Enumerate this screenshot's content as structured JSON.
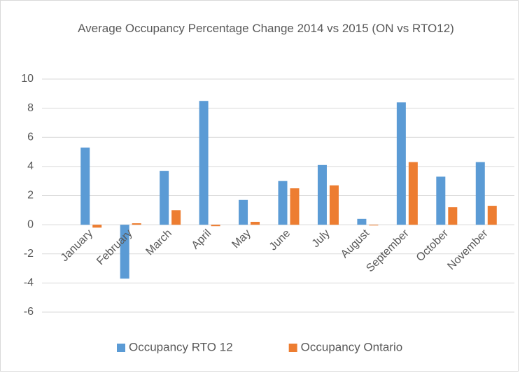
{
  "chart_data": {
    "type": "bar",
    "title": "Average Occupancy Percentage Change 2014 vs 2015 (ON vs RTO12)",
    "categories": [
      "January",
      "February",
      "March",
      "April",
      "May",
      "June",
      "July",
      "August",
      "September",
      "October",
      "November"
    ],
    "series": [
      {
        "name": "Occupancy RTO 12",
        "color": "#5b9bd5",
        "values": [
          5.3,
          -3.7,
          3.7,
          8.5,
          1.7,
          3.0,
          4.1,
          0.4,
          8.4,
          3.3,
          4.3
        ]
      },
      {
        "name": "Occupancy Ontario",
        "color": "#ed7d31",
        "values": [
          -0.2,
          0.1,
          1.0,
          -0.1,
          0.2,
          2.5,
          2.7,
          -0.05,
          4.3,
          1.2,
          1.3
        ]
      }
    ],
    "ylim": [
      -6,
      10
    ],
    "yticks": [
      -6,
      -4,
      -2,
      0,
      2,
      4,
      6,
      8,
      10
    ],
    "grid": true,
    "legend": "bottom"
  }
}
